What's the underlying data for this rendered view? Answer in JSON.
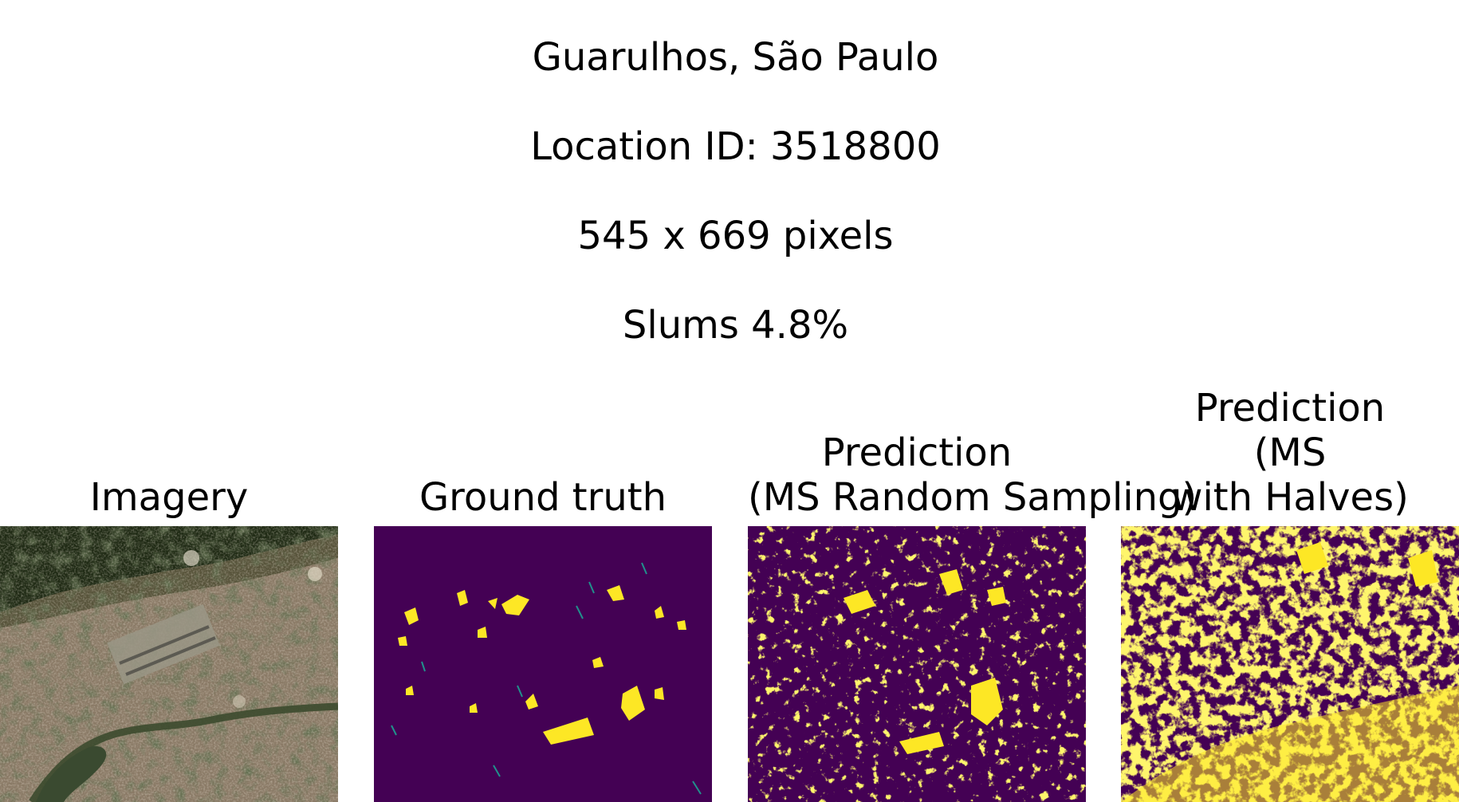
{
  "figure": {
    "title_lines": [
      "Guarulhos, São Paulo",
      "Location ID: 3518800",
      "545 x 669 pixels",
      "Slums 4.8%"
    ]
  },
  "panels": [
    {
      "title_lines": [
        "Imagery"
      ]
    },
    {
      "title_lines": [
        "Ground truth"
      ]
    },
    {
      "title_lines": [
        "Prediction",
        "(MS Random Sampling)"
      ]
    },
    {
      "title_lines": [
        "Prediction",
        "(MS",
        "with Halves)"
      ]
    }
  ],
  "colors": {
    "mask_background": "#440154",
    "mask_foreground": "#fde725",
    "mask_edge": "#21918c",
    "imagery_forest": "#1f2a14",
    "imagery_urban": "#8a7a66",
    "imagery_river": "#3c4a2e"
  }
}
